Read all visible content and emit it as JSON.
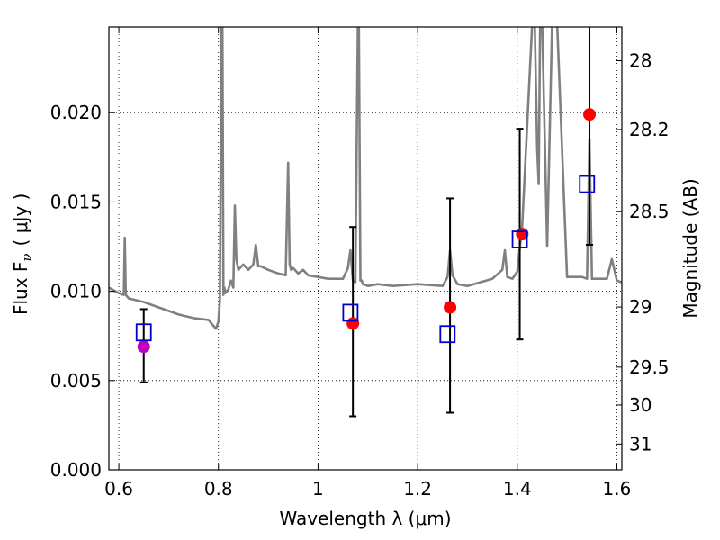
{
  "chart_data": {
    "type": "scatter",
    "xlabel": "Wavelength  λ (μm)",
    "ylabel_left": "Flux  F",
    "ylabel_left_sub": "ν",
    "ylabel_left_unit": "( μJy )",
    "ylabel_right": "Magnitude (AB)",
    "xlim": [
      0.58,
      1.61
    ],
    "ylim": [
      0.0,
      0.0248
    ],
    "grid": true,
    "x_ticks": [
      0.6,
      0.8,
      1.0,
      1.2,
      1.4,
      1.6
    ],
    "x_tick_labels": [
      "0.6",
      "0.8",
      "1",
      "1.2",
      "1.4",
      "1.6"
    ],
    "y_ticks": [
      0.0,
      0.005,
      0.01,
      0.015,
      0.02
    ],
    "y_tick_labels": [
      "0.000",
      "0.005",
      "0.010",
      "0.015",
      "0.020"
    ],
    "right_ticks": [
      28,
      28.2,
      28.5,
      29,
      29.5,
      30,
      31
    ],
    "right_tick_labels": [
      "28",
      "28.2",
      "28.5",
      "29",
      "29.5",
      "30",
      "31"
    ],
    "colors": {
      "model": "#808080",
      "observed": "#ff0000",
      "observed_first": "#bf00bf",
      "model_box": "#0000cc",
      "error_bar": "#000000"
    },
    "model_spectrum": {
      "name": "model",
      "x": [
        0.58,
        0.6,
        0.61,
        0.612,
        0.614,
        0.62,
        0.65,
        0.68,
        0.7,
        0.72,
        0.75,
        0.78,
        0.795,
        0.8,
        0.803,
        0.806,
        0.808,
        0.81,
        0.812,
        0.814,
        0.82,
        0.825,
        0.83,
        0.833,
        0.836,
        0.84,
        0.85,
        0.86,
        0.87,
        0.875,
        0.88,
        0.885,
        0.9,
        0.92,
        0.935,
        0.94,
        0.943,
        0.946,
        0.95,
        0.96,
        0.97,
        0.98,
        1.0,
        1.02,
        1.05,
        1.06,
        1.065,
        1.07,
        1.075,
        1.08,
        1.082,
        1.085,
        1.088,
        1.09,
        1.1,
        1.12,
        1.15,
        1.2,
        1.25,
        1.26,
        1.265,
        1.27,
        1.28,
        1.3,
        1.35,
        1.37,
        1.375,
        1.38,
        1.39,
        1.4,
        1.41,
        1.43,
        1.435,
        1.44,
        1.443,
        1.446,
        1.45,
        1.46,
        1.47,
        1.48,
        1.5,
        1.53,
        1.54,
        1.545,
        1.55,
        1.56,
        1.58,
        1.59,
        1.6,
        1.61
      ],
      "y": [
        0.0102,
        0.0099,
        0.0098,
        0.013,
        0.0098,
        0.0096,
        0.0094,
        0.0091,
        0.0089,
        0.0087,
        0.0085,
        0.0084,
        0.0079,
        0.0083,
        0.0095,
        0.025,
        0.025,
        0.0098,
        0.0102,
        0.0099,
        0.0101,
        0.0106,
        0.0102,
        0.0148,
        0.0118,
        0.0112,
        0.0115,
        0.0112,
        0.0115,
        0.0126,
        0.0114,
        0.0114,
        0.0112,
        0.011,
        0.0109,
        0.0172,
        0.0115,
        0.0112,
        0.0113,
        0.011,
        0.0112,
        0.0109,
        0.0108,
        0.0107,
        0.0107,
        0.0113,
        0.0123,
        0.0106,
        0.0105,
        0.025,
        0.025,
        0.0106,
        0.0106,
        0.0104,
        0.0103,
        0.0104,
        0.0103,
        0.0104,
        0.0103,
        0.0108,
        0.0123,
        0.0109,
        0.0104,
        0.0103,
        0.0107,
        0.0112,
        0.0123,
        0.0108,
        0.0107,
        0.0111,
        0.0137,
        0.025,
        0.025,
        0.018,
        0.016,
        0.025,
        0.025,
        0.0125,
        0.025,
        0.025,
        0.0108,
        0.0108,
        0.0107,
        0.0185,
        0.0107,
        0.0107,
        0.0107,
        0.0118,
        0.0106,
        0.0105
      ]
    },
    "observed": {
      "name": "observed",
      "x": [
        0.65,
        1.07,
        1.265,
        1.41,
        1.545
      ],
      "y": [
        0.0069,
        0.0082,
        0.0091,
        0.0132,
        0.0199
      ]
    },
    "model_photometry": {
      "name": "model photometry",
      "x": [
        0.65,
        1.065,
        1.26,
        1.405,
        1.54
      ],
      "y": [
        0.0077,
        0.0088,
        0.0076,
        0.0129,
        0.016
      ]
    },
    "error_bars": {
      "x": [
        0.65,
        1.07,
        1.265,
        1.405,
        1.545
      ],
      "low": [
        0.0049,
        0.003,
        0.0032,
        0.0073,
        0.0126
      ],
      "high": [
        0.009,
        0.0136,
        0.0152,
        0.0191,
        0.025
      ]
    }
  }
}
